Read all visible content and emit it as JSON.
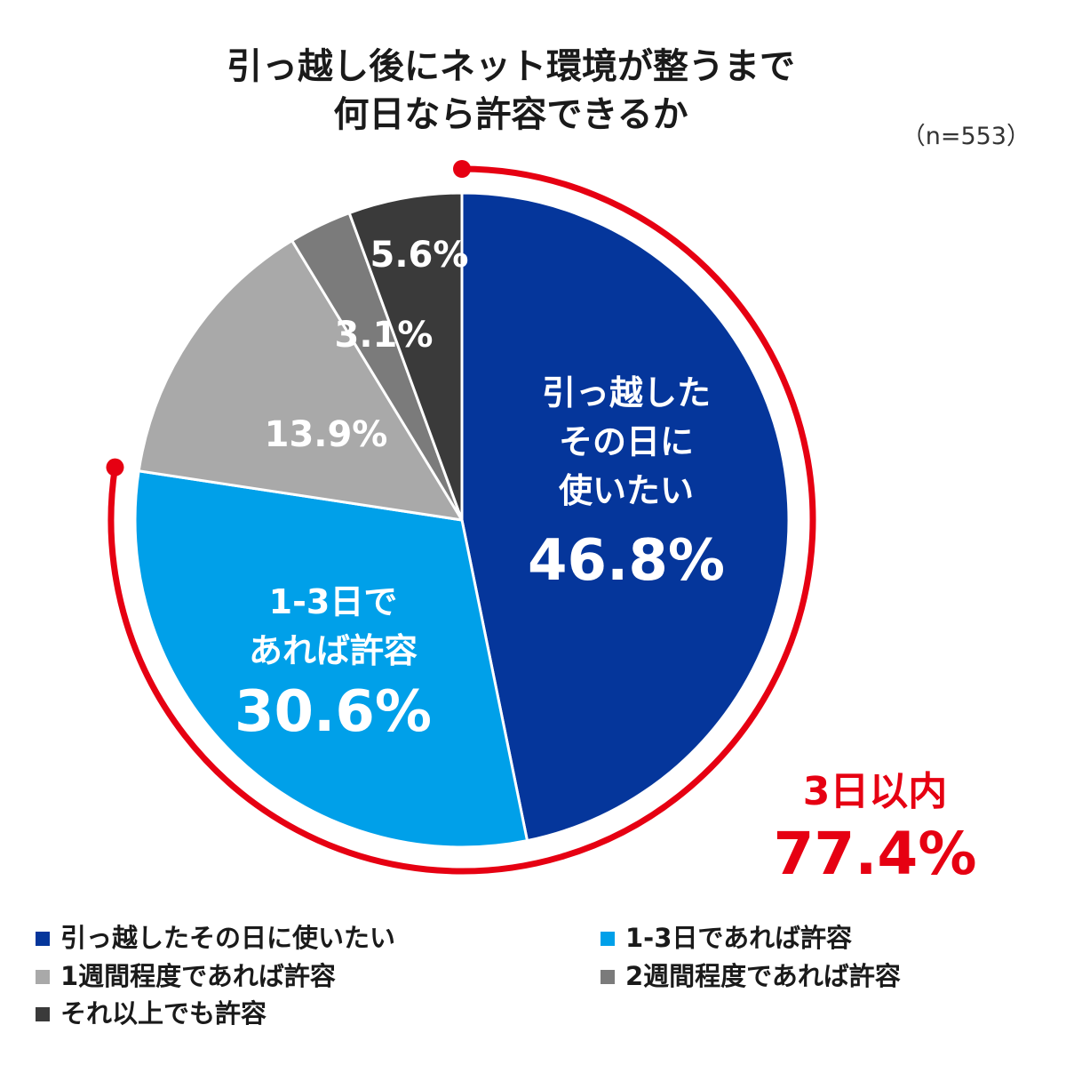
{
  "chart_data": {
    "type": "pie",
    "title": [
      "引っ越し後にネット環境が整うまで",
      "何日なら許容できるか"
    ],
    "sample_size": "（n=553）",
    "slices": [
      {
        "name": "引っ越したその日に使いたい",
        "value": 46.8,
        "color": "#05369b",
        "label_lines": [
          "引っ越した",
          "その日に",
          "使いたい"
        ],
        "value_label": "46.8%"
      },
      {
        "name": "1-3日であれば許容",
        "value": 30.6,
        "color": "#00a0e9",
        "label_lines": [
          "1-3日で",
          "あれば許容"
        ],
        "value_label": "30.6%"
      },
      {
        "name": "1週間程度であれば許容",
        "value": 13.9,
        "color": "#a9a9a9",
        "label_lines": [],
        "value_label": "13.9%"
      },
      {
        "name": "2週間程度であれば許容",
        "value": 3.1,
        "color": "#7b7b7b",
        "label_lines": [],
        "value_label": "3.1%"
      },
      {
        "name": "それ以上でも許容",
        "value": 5.6,
        "color": "#3a3a3a",
        "label_lines": [],
        "value_label": "5.6%"
      }
    ],
    "callout": {
      "label": "3日以内",
      "value": "77.4%",
      "color": "#e60012"
    },
    "legend_placement": "bottom"
  }
}
